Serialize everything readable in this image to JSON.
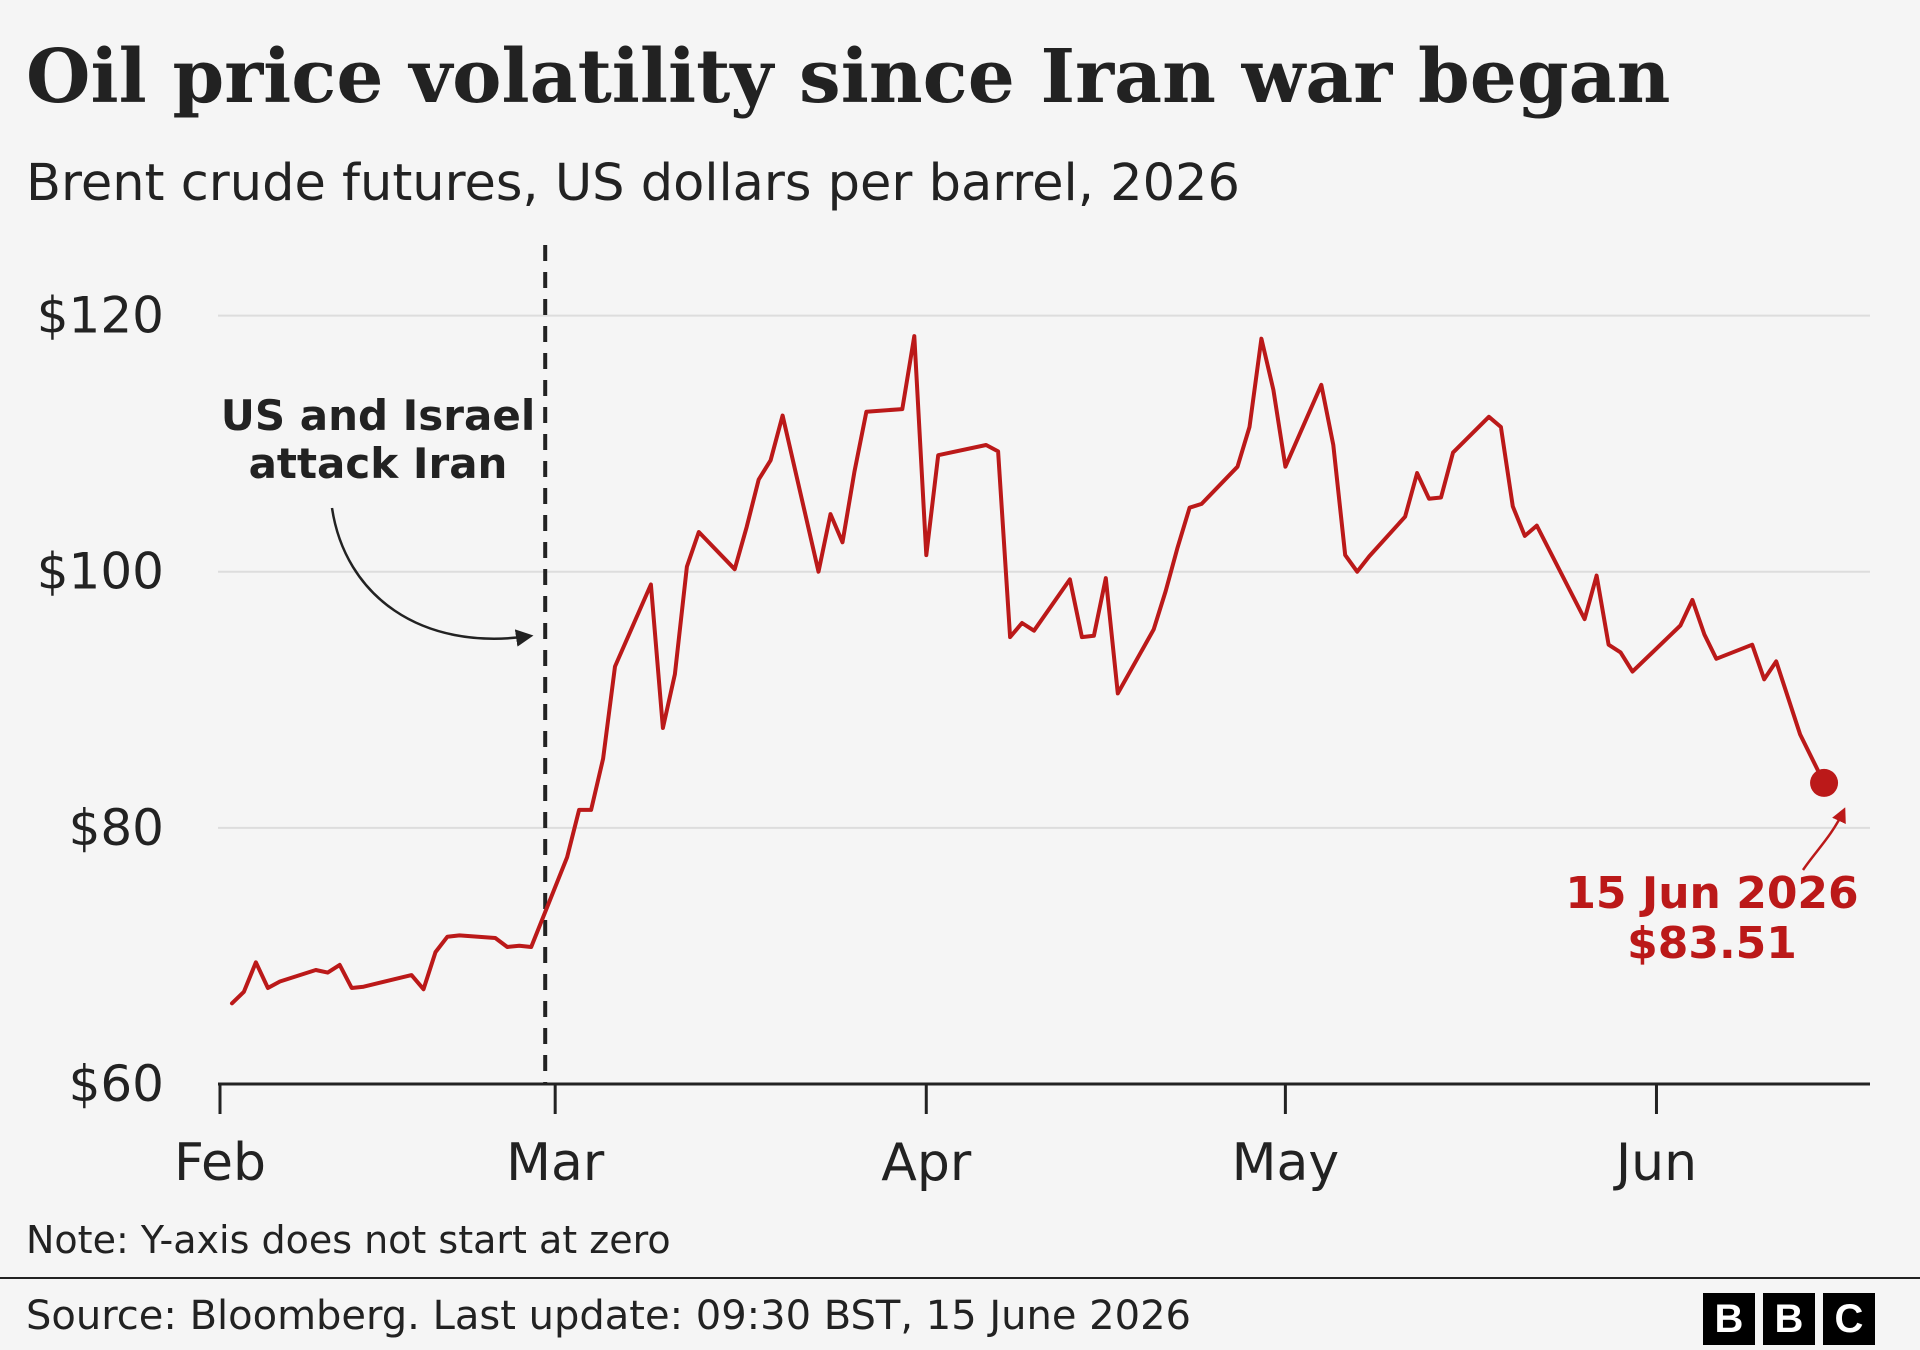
{
  "header": {
    "title": "Oil price volatility since Iran war began",
    "subtitle": "Brent crude futures, US dollars per barrel, 2026"
  },
  "footer": {
    "note": "Note: Y-axis does not start at zero",
    "source": "Source: Bloomberg. Last update: 09:30 BST, 15 June 2026",
    "logo_letters": [
      "B",
      "B",
      "C"
    ]
  },
  "colors": {
    "line": "#bb1919",
    "text": "#222222",
    "grid": "#dddddd",
    "background": "#f5f5f5"
  },
  "chart_data": {
    "type": "line",
    "title": "Oil price volatility since Iran war began",
    "subtitle": "Brent crude futures, US dollars per barrel, 2026",
    "xlabel": "",
    "ylabel": "",
    "x_ticks": [
      {
        "date": "2026-02-01",
        "label": "Feb"
      },
      {
        "date": "2026-03-01",
        "label": "Mar"
      },
      {
        "date": "2026-04-01",
        "label": "Apr"
      },
      {
        "date": "2026-05-01",
        "label": "May"
      },
      {
        "date": "2026-06-01",
        "label": "Jun"
      }
    ],
    "xlim": [
      "2026-02-01",
      "2026-06-17"
    ],
    "ylim": [
      60,
      122
    ],
    "y_ticks": [
      {
        "value": 60,
        "label": "$60"
      },
      {
        "value": 80,
        "label": "$80"
      },
      {
        "value": 100,
        "label": "$100"
      },
      {
        "value": 120,
        "label": "$120"
      }
    ],
    "grid": true,
    "series": [
      {
        "values": [
          [
            "2026-02-02",
            66.3
          ],
          [
            "2026-02-03",
            67.2
          ],
          [
            "2026-02-04",
            69.5
          ],
          [
            "2026-02-05",
            67.5
          ],
          [
            "2026-02-06",
            68.0
          ],
          [
            "2026-02-09",
            68.9
          ],
          [
            "2026-02-10",
            68.7
          ],
          [
            "2026-02-11",
            69.3
          ],
          [
            "2026-02-12",
            67.5
          ],
          [
            "2026-02-13",
            67.6
          ],
          [
            "2026-02-17",
            68.5
          ],
          [
            "2026-02-18",
            67.4
          ],
          [
            "2026-02-19",
            70.3
          ],
          [
            "2026-02-20",
            71.5
          ],
          [
            "2026-02-21",
            71.6
          ],
          [
            "2026-02-24",
            71.4
          ],
          [
            "2026-02-25",
            70.7
          ],
          [
            "2026-02-26",
            70.8
          ],
          [
            "2026-02-27",
            70.7
          ],
          [
            "2026-03-02",
            77.7
          ],
          [
            "2026-03-03",
            81.4
          ],
          [
            "2026-03-04",
            81.4
          ],
          [
            "2026-03-05",
            85.4
          ],
          [
            "2026-03-06",
            92.6
          ],
          [
            "2026-03-09",
            99.0
          ],
          [
            "2026-03-10",
            87.8
          ],
          [
            "2026-03-11",
            92.0
          ],
          [
            "2026-03-12",
            100.4
          ],
          [
            "2026-03-13",
            103.1
          ],
          [
            "2026-03-16",
            100.2
          ],
          [
            "2026-03-17",
            103.5
          ],
          [
            "2026-03-18",
            107.2
          ],
          [
            "2026-03-19",
            108.7
          ],
          [
            "2026-03-20",
            112.2
          ],
          [
            "2026-03-23",
            100.0
          ],
          [
            "2026-03-24",
            104.5
          ],
          [
            "2026-03-25",
            102.3
          ],
          [
            "2026-03-26",
            107.8
          ],
          [
            "2026-03-27",
            112.5
          ],
          [
            "2026-03-30",
            112.7
          ],
          [
            "2026-03-31",
            118.4
          ],
          [
            "2026-04-01",
            101.3
          ],
          [
            "2026-04-02",
            109.1
          ],
          [
            "2026-04-06",
            109.9
          ],
          [
            "2026-04-07",
            109.4
          ],
          [
            "2026-04-08",
            94.9
          ],
          [
            "2026-04-09",
            96.0
          ],
          [
            "2026-04-10",
            95.4
          ],
          [
            "2026-04-13",
            99.4
          ],
          [
            "2026-04-14",
            94.9
          ],
          [
            "2026-04-15",
            95.0
          ],
          [
            "2026-04-16",
            99.5
          ],
          [
            "2026-04-17",
            90.5
          ],
          [
            "2026-04-20",
            95.5
          ],
          [
            "2026-04-21",
            98.5
          ],
          [
            "2026-04-22",
            101.9
          ],
          [
            "2026-04-23",
            105.0
          ],
          [
            "2026-04-24",
            105.3
          ],
          [
            "2026-04-27",
            108.2
          ],
          [
            "2026-04-28",
            111.3
          ],
          [
            "2026-04-29",
            118.2
          ],
          [
            "2026-04-30",
            114.2
          ],
          [
            "2026-05-01",
            108.2
          ],
          [
            "2026-05-04",
            114.6
          ],
          [
            "2026-05-05",
            109.9
          ],
          [
            "2026-05-06",
            101.3
          ],
          [
            "2026-05-07",
            100.0
          ],
          [
            "2026-05-08",
            101.2
          ],
          [
            "2026-05-11",
            104.3
          ],
          [
            "2026-05-12",
            107.7
          ],
          [
            "2026-05-13",
            105.7
          ],
          [
            "2026-05-14",
            105.8
          ],
          [
            "2026-05-15",
            109.3
          ],
          [
            "2026-05-18",
            112.1
          ],
          [
            "2026-05-19",
            111.3
          ],
          [
            "2026-05-20",
            105.1
          ],
          [
            "2026-05-21",
            102.8
          ],
          [
            "2026-05-22",
            103.6
          ],
          [
            "2026-05-26",
            96.3
          ],
          [
            "2026-05-27",
            99.7
          ],
          [
            "2026-05-28",
            94.3
          ],
          [
            "2026-05-29",
            93.7
          ],
          [
            "2026-05-30",
            92.2
          ],
          [
            "2026-06-03",
            95.8
          ],
          [
            "2026-06-04",
            97.8
          ],
          [
            "2026-06-05",
            95.1
          ],
          [
            "2026-06-06",
            93.2
          ],
          [
            "2026-06-09",
            94.3
          ],
          [
            "2026-06-10",
            91.6
          ],
          [
            "2026-06-11",
            93.0
          ],
          [
            "2026-06-13",
            87.3
          ],
          [
            "2026-06-15",
            83.51
          ]
        ]
      }
    ],
    "event_marker": {
      "date": "2026-02-28",
      "label_lines": [
        "US and Israel",
        "attack Iran"
      ]
    },
    "end_point": {
      "date": "2026-06-15",
      "value": 83.51,
      "label_lines": [
        "15 Jun 2026",
        "$83.51"
      ]
    }
  }
}
